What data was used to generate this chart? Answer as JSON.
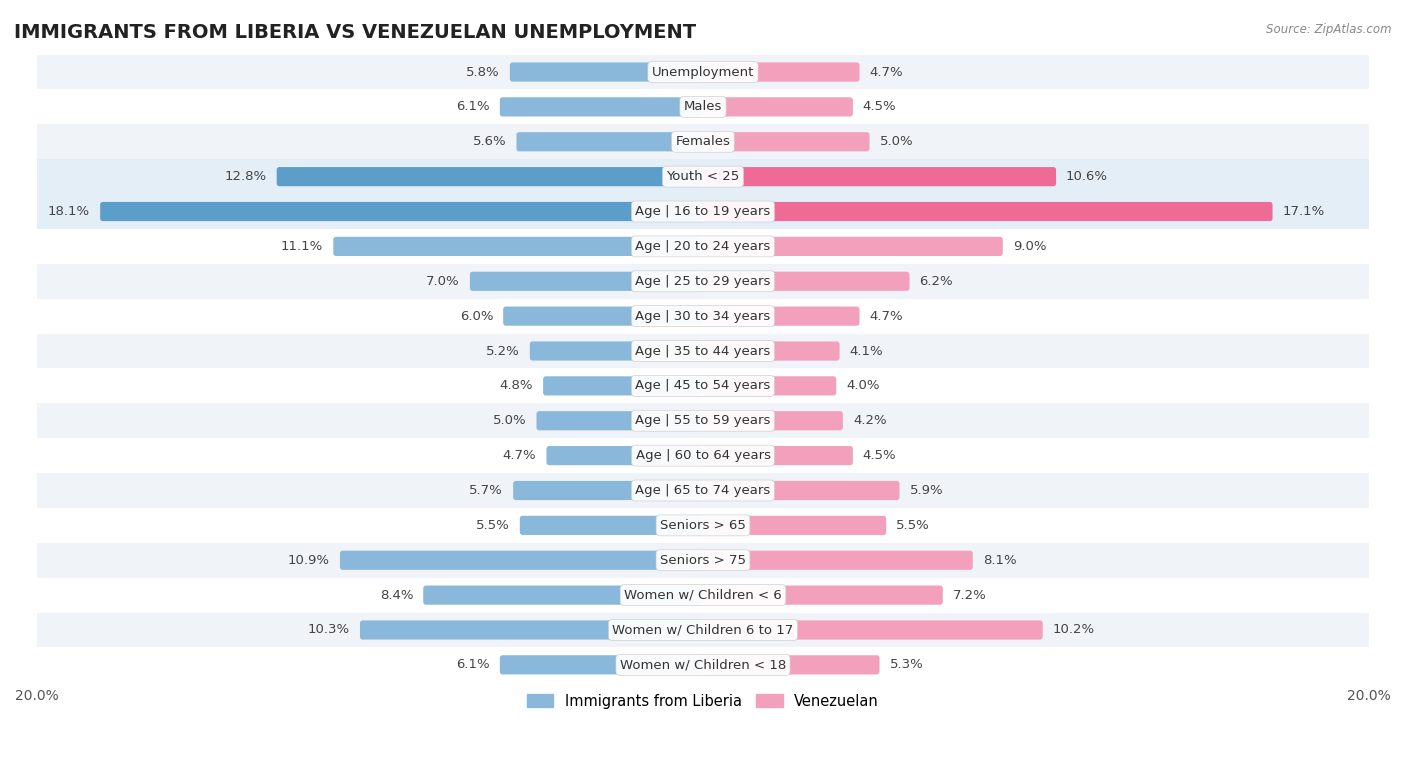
{
  "title": "IMMIGRANTS FROM LIBERIA VS VENEZUELAN UNEMPLOYMENT",
  "source": "Source: ZipAtlas.com",
  "categories": [
    "Unemployment",
    "Males",
    "Females",
    "Youth < 25",
    "Age | 16 to 19 years",
    "Age | 20 to 24 years",
    "Age | 25 to 29 years",
    "Age | 30 to 34 years",
    "Age | 35 to 44 years",
    "Age | 45 to 54 years",
    "Age | 55 to 59 years",
    "Age | 60 to 64 years",
    "Age | 65 to 74 years",
    "Seniors > 65",
    "Seniors > 75",
    "Women w/ Children < 6",
    "Women w/ Children 6 to 17",
    "Women w/ Children < 18"
  ],
  "liberia_values": [
    5.8,
    6.1,
    5.6,
    12.8,
    18.1,
    11.1,
    7.0,
    6.0,
    5.2,
    4.8,
    5.0,
    4.7,
    5.7,
    5.5,
    10.9,
    8.4,
    10.3,
    6.1
  ],
  "venezuelan_values": [
    4.7,
    4.5,
    5.0,
    10.6,
    17.1,
    9.0,
    6.2,
    4.7,
    4.1,
    4.0,
    4.2,
    4.5,
    5.9,
    5.5,
    8.1,
    7.2,
    10.2,
    5.3
  ],
  "liberia_color": "#89b8da",
  "venezuelan_color": "#f2a0bb",
  "liberia_highlight_color": "#5c9eca",
  "venezuelan_highlight_color": "#ee6b96",
  "highlight_indices": [
    3,
    4
  ],
  "row_colors": [
    "#f0f4f8",
    "#ffffff"
  ],
  "highlight_row_color": "#e4eef7",
  "x_max": 20.0,
  "bar_height": 0.55,
  "title_fontsize": 14,
  "label_fontsize": 9.5,
  "tick_fontsize": 10,
  "legend_fontsize": 10.5
}
